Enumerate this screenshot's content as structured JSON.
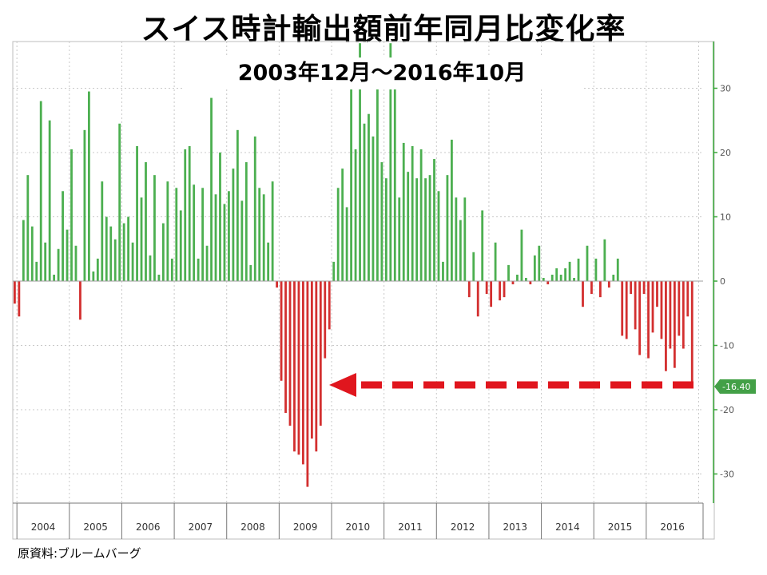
{
  "title": "スイス時計輸出額前年同月比変化率",
  "subtitle": "2003年12月～2016年10月",
  "source": "原資料:ブルームバーグ",
  "colors": {
    "positive": "#4caf50",
    "negative": "#d32f2f",
    "arrow": "#e0161e",
    "grid": "#c8c8c8",
    "axis": "#3aa83a"
  },
  "chart_data": {
    "type": "bar",
    "title": "スイス時計輸出額前年同月比変化率",
    "subtitle": "2003年12月～2016年10月",
    "xlabel": "",
    "ylabel": "",
    "ylim": [
      -35,
      37
    ],
    "yticks": [
      "30",
      "20",
      "10",
      "0",
      "-10",
      "-20",
      "-30"
    ],
    "years": [
      "2004",
      "2005",
      "2006",
      "2007",
      "2008",
      "2009",
      "2010",
      "2011",
      "2012",
      "2013",
      "2014",
      "2015",
      "2016"
    ],
    "start": "2003-12",
    "end": "2016-10",
    "last_value_label": "-16.40",
    "grid": true,
    "values": [
      -3.5,
      -5.5,
      9.5,
      16.5,
      8.5,
      3.0,
      28.0,
      6.0,
      25.0,
      1.0,
      5.0,
      14.0,
      8.0,
      20.5,
      5.5,
      -6.0,
      23.5,
      29.5,
      1.5,
      3.5,
      15.5,
      10.0,
      8.5,
      6.5,
      24.5,
      9.0,
      10.0,
      6.0,
      21.0,
      13.0,
      18.5,
      4.0,
      16.5,
      1.0,
      9.0,
      15.5,
      3.5,
      14.5,
      11.0,
      20.5,
      21.0,
      15.0,
      3.5,
      14.5,
      5.5,
      28.5,
      13.5,
      20.0,
      12.0,
      14.0,
      17.5,
      23.5,
      12.5,
      18.5,
      2.5,
      22.5,
      14.5,
      13.5,
      6.0,
      15.5,
      -1.0,
      -15.5,
      -20.5,
      -22.5,
      -26.5,
      -27.0,
      -28.5,
      -32.0,
      -24.5,
      -26.5,
      -22.5,
      -12.0,
      -7.5,
      3.0,
      14.5,
      17.5,
      11.5,
      32.0,
      20.5,
      37.0,
      24.5,
      26.0,
      22.5,
      30.0,
      18.5,
      16.0,
      37.0,
      30.0,
      13.0,
      21.5,
      17.0,
      21.0,
      16.0,
      20.5,
      16.0,
      16.5,
      19.0,
      14.0,
      3.0,
      16.5,
      22.0,
      13.0,
      9.5,
      13.0,
      -2.5,
      4.5,
      -5.5,
      11.0,
      -2.0,
      -4.0,
      6.0,
      -3.0,
      -2.5,
      2.5,
      -0.5,
      1.0,
      8.0,
      0.5,
      -0.5,
      4.0,
      5.5,
      0.5,
      -0.5,
      1.0,
      2.0,
      1.0,
      2.0,
      3.0,
      0.5,
      3.5,
      -4.0,
      5.5,
      -2.0,
      3.5,
      -2.5,
      6.5,
      -1.0,
      1.0,
      3.5,
      -8.5,
      -9.0,
      -2.0,
      -7.5,
      -11.5,
      -2.0,
      -12.0,
      -8.0,
      -4.0,
      -9.0,
      -14.0,
      -10.5,
      -13.5,
      -8.5,
      -10.5,
      -5.5,
      -16.4
    ]
  }
}
